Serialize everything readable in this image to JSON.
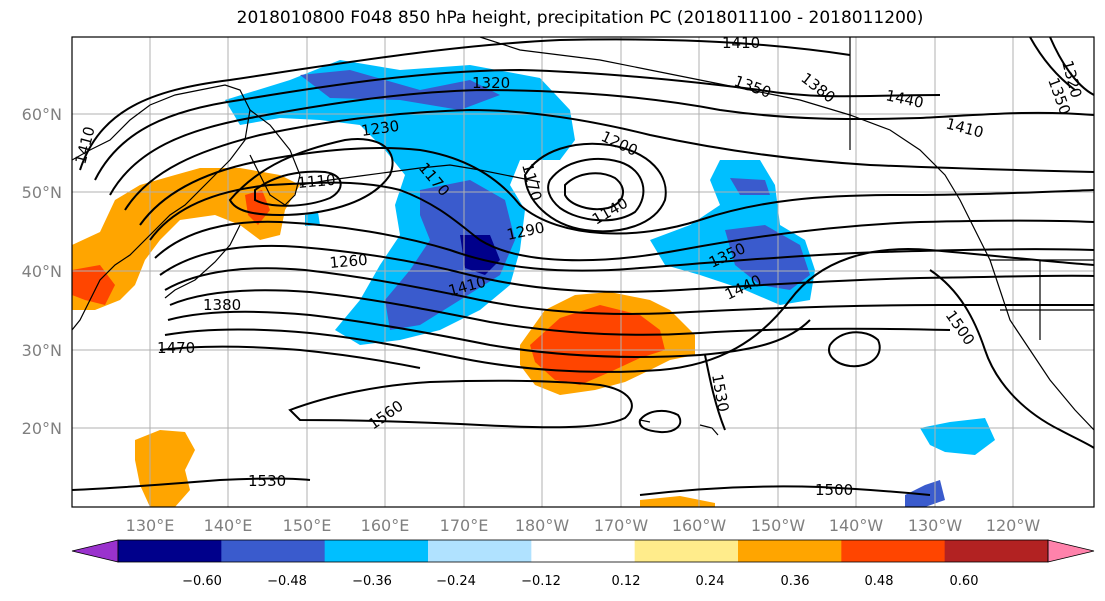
{
  "title": "2018010800 F048 850 hPa height, precipitation PC (2018011100 - 2018011200)",
  "map": {
    "lat_labels": [
      "60°N",
      "50°N",
      "40°N",
      "30°N",
      "20°N"
    ],
    "lon_labels": [
      "130°E",
      "140°E",
      "150°E",
      "160°E",
      "170°E",
      "180°W",
      "170°W",
      "160°W",
      "150°W",
      "140°W",
      "130°W",
      "120°W"
    ],
    "contour_labels": [
      "1410",
      "1320",
      "1350",
      "1380",
      "1440",
      "1410",
      "1230",
      "1200",
      "1170",
      "1110",
      "1170",
      "1140",
      "1410",
      "1320",
      "1350",
      "1290",
      "1260",
      "1350",
      "1380",
      "1410",
      "1440",
      "1470",
      "1500",
      "1560",
      "1530",
      "1530",
      "1500",
      "1350"
    ],
    "land_color": "#000000",
    "grid_color": "#b0b0b0"
  },
  "colorbar": {
    "ticks": [
      "−0.60",
      "−0.48",
      "−0.36",
      "−0.24",
      "−0.12",
      "0.12",
      "0.24",
      "0.36",
      "0.48",
      "0.60"
    ],
    "colors": [
      "#9a32cd",
      "#00008b",
      "#3a5bcd",
      "#00bfff",
      "#b0e2ff",
      "#ffffff",
      "#ffec8b",
      "#ffa500",
      "#ff4500",
      "#b22222",
      "#ff82ab"
    ]
  }
}
